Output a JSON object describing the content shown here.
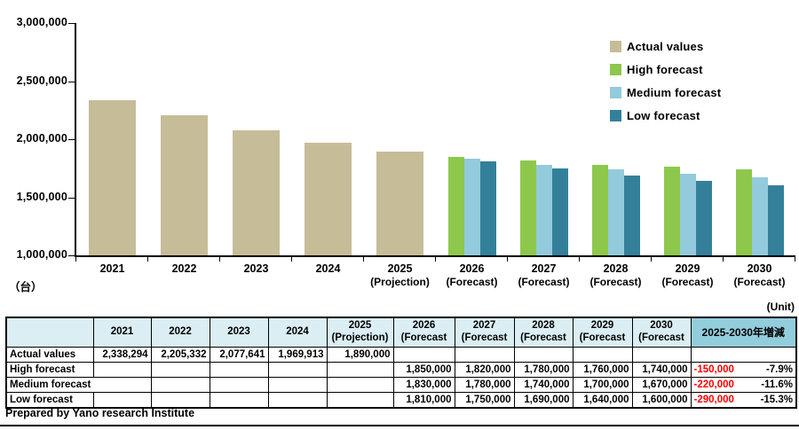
{
  "chart": {
    "unit_label": "（台）",
    "y_ticks": [
      "3,000,000",
      "2,500,000",
      "2,000,000",
      "1,500,000",
      "1,000,000"
    ],
    "x_labels": [
      {
        "line1": "2021",
        "line2": ""
      },
      {
        "line1": "2022",
        "line2": ""
      },
      {
        "line1": "2023",
        "line2": ""
      },
      {
        "line1": "2024",
        "line2": ""
      },
      {
        "line1": "2025",
        "line2": "(Projection)"
      },
      {
        "line1": "2026",
        "line2": "(Forecast)"
      },
      {
        "line1": "2027",
        "line2": "(Forecast)"
      },
      {
        "line1": "2028",
        "line2": "(Forecast)"
      },
      {
        "line1": "2029",
        "line2": "(Forecast)"
      },
      {
        "line1": "2030",
        "line2": "(Forecast)"
      }
    ],
    "legend": [
      {
        "label": "Actual values",
        "color": "#C6BC98"
      },
      {
        "label": "High forecast",
        "color": "#8DC84C"
      },
      {
        "label": "Medium forecast",
        "color": "#93CADC"
      },
      {
        "label": "Low forecast",
        "color": "#34809A"
      }
    ]
  },
  "chart_data": {
    "type": "bar",
    "categories": [
      "2021",
      "2022",
      "2023",
      "2024",
      "2025 (Projection)",
      "2026 (Forecast)",
      "2027 (Forecast)",
      "2028 (Forecast)",
      "2029 (Forecast)",
      "2030 (Forecast)"
    ],
    "series": [
      {
        "name": "Actual values",
        "color": "#C6BC98",
        "values": [
          2338294,
          2205332,
          2077641,
          1969913,
          1890000,
          null,
          null,
          null,
          null,
          null
        ]
      },
      {
        "name": "High forecast",
        "color": "#8DC84C",
        "values": [
          null,
          null,
          null,
          null,
          null,
          1850000,
          1820000,
          1780000,
          1760000,
          1740000
        ]
      },
      {
        "name": "Medium forecast",
        "color": "#93CADC",
        "values": [
          null,
          null,
          null,
          null,
          null,
          1830000,
          1780000,
          1740000,
          1700000,
          1670000
        ]
      },
      {
        "name": "Low forecast",
        "color": "#34809A",
        "values": [
          null,
          null,
          null,
          null,
          null,
          1810000,
          1750000,
          1690000,
          1640000,
          1600000
        ]
      }
    ],
    "title": "",
    "xlabel": "",
    "ylabel": "（台）",
    "ylim": [
      1000000,
      3000000
    ],
    "ytick_interval": 500000,
    "grid": false,
    "legend_position": "upper-right"
  },
  "table": {
    "unit_note": "(Unit)",
    "corner_header": "",
    "year_headers": [
      {
        "l1": "2021",
        "l2": ""
      },
      {
        "l1": "2022",
        "l2": ""
      },
      {
        "l1": "2023",
        "l2": ""
      },
      {
        "l1": "2024",
        "l2": ""
      },
      {
        "l1": "2025",
        "l2": "(Projection)"
      },
      {
        "l1": "2026",
        "l2": "(Forecast"
      },
      {
        "l1": "2027",
        "l2": "(Forecast"
      },
      {
        "l1": "2028",
        "l2": "(Forecast"
      },
      {
        "l1": "2029",
        "l2": "(Forecast"
      },
      {
        "l1": "2030",
        "l2": "(Forecast"
      }
    ],
    "change_header": "2025-2030年増減",
    "rows": [
      {
        "label": "Actual values",
        "values": [
          "2,338,294",
          "2,205,332",
          "2,077,641",
          "1,969,913",
          "1,890,000",
          "",
          "",
          "",
          "",
          ""
        ],
        "change": "",
        "change_pct": ""
      },
      {
        "label": "High forecast",
        "values": [
          "",
          "",
          "",
          "",
          "",
          "1,850,000",
          "1,820,000",
          "1,780,000",
          "1,760,000",
          "1,740,000"
        ],
        "change": "-150,000",
        "change_pct": "-7.9%"
      },
      {
        "label": "Medium forecast",
        "values": [
          "",
          "",
          "",
          "",
          "",
          "1,830,000",
          "1,780,000",
          "1,740,000",
          "1,700,000",
          "1,670,000"
        ],
        "change": "-220,000",
        "change_pct": "-11.6%"
      },
      {
        "label": "Low forecast",
        "values": [
          "",
          "",
          "",
          "",
          "",
          "1,810,000",
          "1,750,000",
          "1,690,000",
          "1,640,000",
          "1,600,000"
        ],
        "change": "-290,000",
        "change_pct": "-15.3%"
      }
    ],
    "colors": {
      "header_bg": "#DAEEF3",
      "change_header_bg": "#92CDDC",
      "negative": "#FF0000"
    }
  },
  "footer": {
    "prepared_by": "Prepared by Yano research Institute"
  }
}
